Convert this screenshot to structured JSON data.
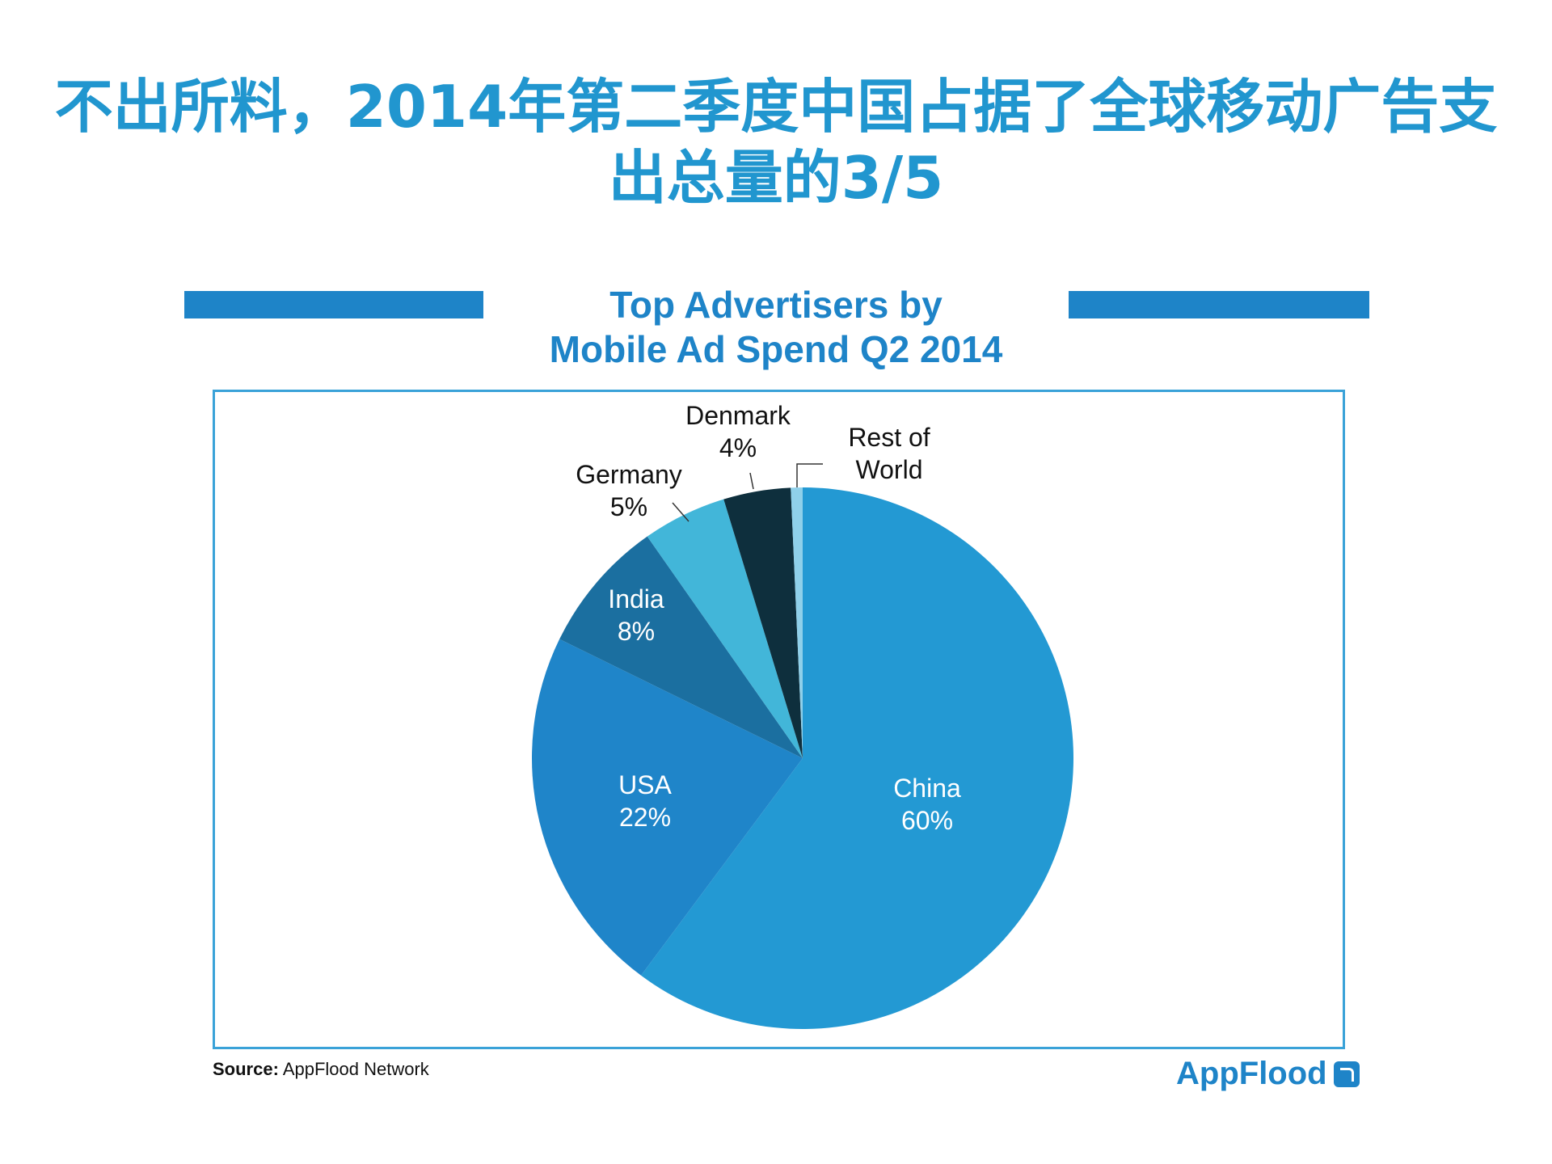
{
  "page": {
    "headline_line1": "不出所料，2014年第二季度中国占据了全球移动广告支",
    "headline_line2": "出总量的3/5"
  },
  "chart_data": {
    "type": "pie",
    "title": "Top Advertisers by Mobile Ad Spend Q2 2014",
    "title_lines": [
      "Top Advertisers by",
      "Mobile Ad Spend Q2 2014"
    ],
    "slices": [
      {
        "name": "China",
        "value": 60,
        "label": "60%",
        "color": "#2399d3"
      },
      {
        "name": "USA",
        "value": 22,
        "label": "22%",
        "color": "#1f85c9"
      },
      {
        "name": "India",
        "value": 8,
        "label": "8%",
        "color": "#1b6fa0"
      },
      {
        "name": "Germany",
        "value": 5,
        "label": "5%",
        "color": "#42b6d9"
      },
      {
        "name": "Denmark",
        "value": 4,
        "label": "4%",
        "color": "#0e2f3d"
      },
      {
        "name": "Rest of World",
        "value": 0.7,
        "label": "",
        "color": "#8fd0ea"
      }
    ],
    "label_colors": {
      "inside": "#ffffff",
      "outside": "#111111"
    }
  },
  "footer": {
    "source_prefix": "Source:",
    "source_text": "AppFlood Network",
    "brand": "AppFlood"
  }
}
